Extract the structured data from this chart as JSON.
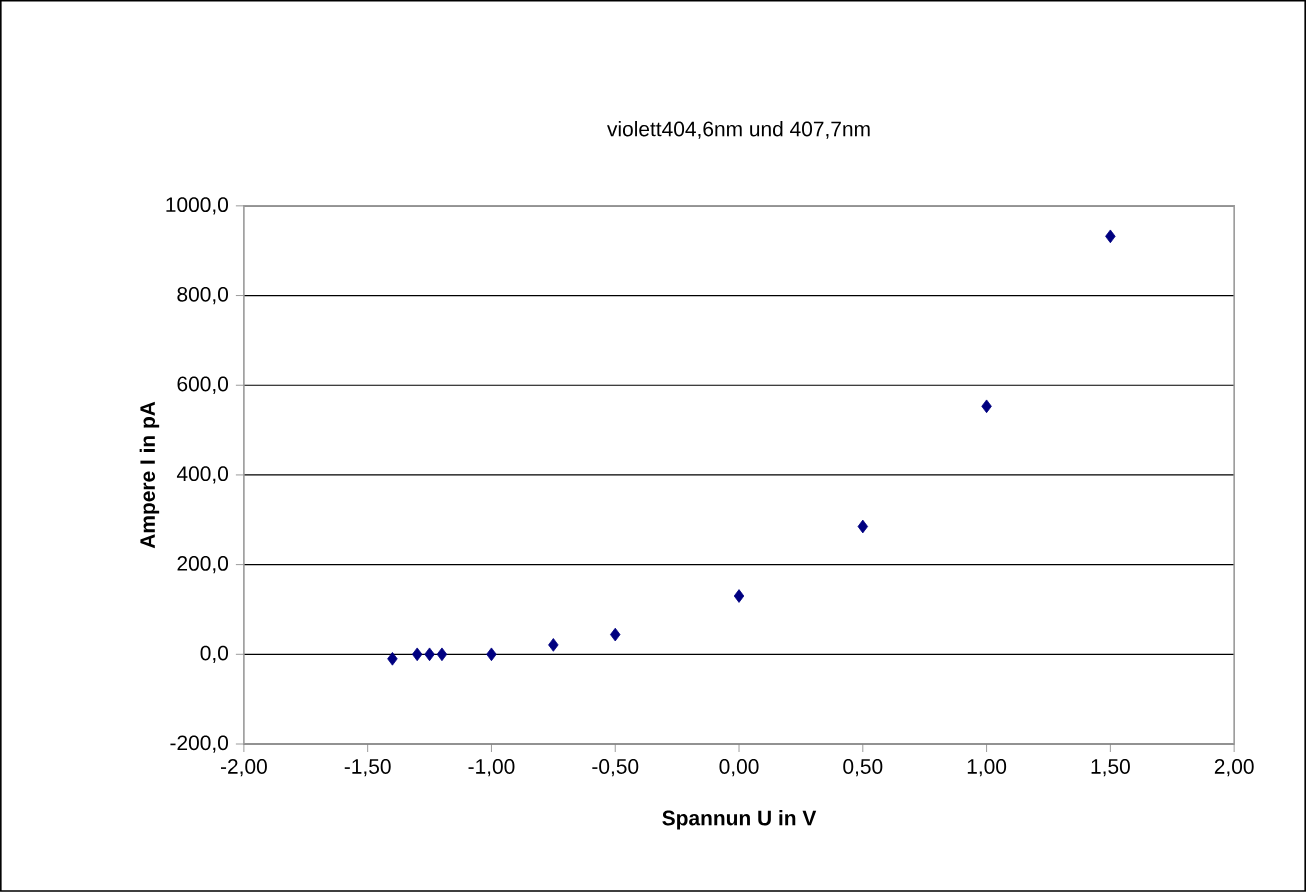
{
  "chart_data": {
    "type": "scatter",
    "title": "violett404,6nm und 407,7nm",
    "xlabel": "Spannun U in V",
    "ylabel": "Ampere I in pA",
    "x": [
      -1.4,
      -1.3,
      -1.25,
      -1.2,
      -1.0,
      -0.75,
      -0.5,
      0.0,
      0.5,
      1.0,
      1.5
    ],
    "series": [
      {
        "color": "#000080",
        "values": [
          -10,
          0,
          0,
          0,
          0,
          21,
          44,
          130,
          285,
          553,
          932
        ]
      }
    ],
    "xlim": [
      -2,
      2
    ],
    "ylim": [
      -200,
      1000
    ],
    "xticks": [
      {
        "value": -2,
        "label": "-2,00"
      },
      {
        "value": -1.5,
        "label": "-1,50"
      },
      {
        "value": -1,
        "label": "-1,00"
      },
      {
        "value": -0.5,
        "label": "-0,50"
      },
      {
        "value": 0,
        "label": "0,00"
      },
      {
        "value": 0.5,
        "label": "0,50"
      },
      {
        "value": 1,
        "label": "1,00"
      },
      {
        "value": 1.5,
        "label": "1,50"
      },
      {
        "value": 2,
        "label": "2,00"
      }
    ],
    "yticks": [
      {
        "value": -200,
        "label": "-200,0"
      },
      {
        "value": 0,
        "label": "0,0"
      },
      {
        "value": 200,
        "label": "200,0"
      },
      {
        "value": 400,
        "label": "400,0"
      },
      {
        "value": 600,
        "label": "600,0"
      },
      {
        "value": 800,
        "label": "800,0"
      },
      {
        "value": 1000,
        "label": "1000,0"
      }
    ],
    "grid": "y",
    "marker": "diamond"
  }
}
